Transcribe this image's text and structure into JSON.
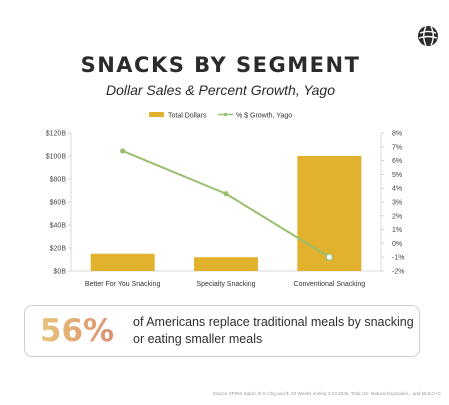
{
  "title": "SNACKS BY SEGMENT",
  "subtitle": "Dollar Sales & Percent Growth, Yago",
  "legend": {
    "bar_label": "Total Dollars",
    "line_label": "% $ Growth, Yago"
  },
  "colors": {
    "bar": "#e2b12d",
    "line": "#99c06f",
    "grid": "#e3e3e3"
  },
  "chart_data": {
    "type": "bar",
    "categories": [
      "Better For You Snacking",
      "Specialty Snacking",
      "Conventional Snacking"
    ],
    "series": [
      {
        "name": "Total Dollars",
        "type": "bar",
        "axis": "left",
        "values": [
          15,
          12,
          100
        ]
      },
      {
        "name": "% $ Growth, Yago",
        "type": "line",
        "axis": "right",
        "values": [
          6.7,
          3.6,
          -1.0
        ]
      }
    ],
    "y_left": {
      "min": 0,
      "max": 120,
      "ticks": [
        "$0B",
        "$20B",
        "$40B",
        "$60B",
        "$80B",
        "$100B",
        "$120B"
      ]
    },
    "y_right": {
      "min": -2,
      "max": 8,
      "ticks": [
        "-2%",
        "-1%",
        "0%",
        "1%",
        "2%",
        "3%",
        "4%",
        "5%",
        "6%",
        "7%",
        "8%"
      ]
    },
    "grid": false,
    "legend_position": "top"
  },
  "stat": {
    "value": "56%",
    "text": "of Americans replace traditional meals by snacking or eating smaller meals"
  },
  "source": "Source SPINS Satori, $ % Chg and $, 52 Weeks ending 3.23.2025, Total US- Natural Expanded... and MULO+C"
}
